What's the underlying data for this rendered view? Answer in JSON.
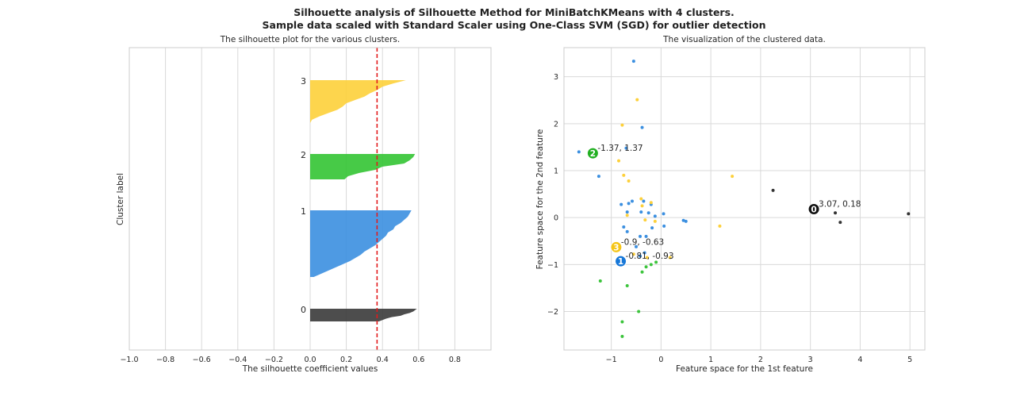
{
  "suptitle": {
    "line1": "Silhouette analysis of Silhouette Method for MiniBatchKMeans with 4 clusters.",
    "line2": "Sample data scaled with Standard Scaler using One-Class SVM (SGD) for outlier detection"
  },
  "chart_data": [
    {
      "type": "area",
      "title": "The silhouette plot for the various clusters.",
      "xlabel": "The silhouette coefficient values",
      "ylabel": "Cluster label",
      "xlim": [
        -1.0,
        1.0
      ],
      "xticks": [
        "−1.0",
        "−0.8",
        "−0.6",
        "−0.4",
        "−0.2",
        "0.0",
        "0.2",
        "0.4",
        "0.6",
        "0.8"
      ],
      "xtick_values": [
        -1.0,
        -0.8,
        -0.6,
        -0.4,
        -0.2,
        0.0,
        0.2,
        0.4,
        0.6,
        0.8
      ],
      "average_silhouette": 0.37,
      "average_line_color": "#e31a1c",
      "grid": true,
      "clusters": [
        {
          "label": "0",
          "color": "#3a3a3a",
          "values": [
            0.59,
            0.58,
            0.57,
            0.55,
            0.52,
            0.5,
            0.45,
            0.42,
            0.4,
            0.38
          ]
        },
        {
          "label": "1",
          "color": "#3b8fe0",
          "values": [
            0.56,
            0.55,
            0.54,
            0.52,
            0.5,
            0.47,
            0.46,
            0.43,
            0.42,
            0.4,
            0.38,
            0.36,
            0.33,
            0.3,
            0.28,
            0.25,
            0.22,
            0.18,
            0.14,
            0.1,
            0.06,
            0.02
          ]
        },
        {
          "label": "2",
          "color": "#33c433",
          "values": [
            0.58,
            0.57,
            0.55,
            0.52,
            0.4,
            0.36,
            0.27,
            0.21,
            0.19
          ]
        },
        {
          "label": "3",
          "color": "#fdd03a",
          "values": [
            0.53,
            0.46,
            0.4,
            0.37,
            0.33,
            0.3,
            0.25,
            0.2,
            0.18,
            0.15,
            0.1,
            0.05,
            0.01,
            0.0
          ]
        }
      ]
    },
    {
      "type": "scatter",
      "title": "The visualization of the clustered data.",
      "xlabel": "Feature space for the 1st feature",
      "ylabel": "Feature space for the 2nd feature",
      "xlim": [
        -1.95,
        5.3
      ],
      "ylim": [
        -2.82,
        3.62
      ],
      "xticks": [
        -1,
        0,
        1,
        2,
        3,
        4,
        5
      ],
      "xtick_labels": [
        "−1",
        "0",
        "1",
        "2",
        "3",
        "4",
        "5"
      ],
      "yticks": [
        -2,
        -1,
        0,
        1,
        2,
        3
      ],
      "ytick_labels": [
        "−2",
        "−1",
        "0",
        "1",
        "2",
        "3"
      ],
      "grid": true,
      "centers": [
        {
          "id": "0",
          "x": 3.07,
          "y": 0.18,
          "label": "3.07, 0.18",
          "color": "#111111"
        },
        {
          "id": "1",
          "x": -0.81,
          "y": -0.93,
          "label": "-0.81, -0.93",
          "color": "#1677d8"
        },
        {
          "id": "2",
          "x": -1.37,
          "y": 1.37,
          "label": "-1.37, 1.37",
          "color": "#22b022"
        },
        {
          "id": "3",
          "x": -0.9,
          "y": -0.63,
          "label": "-0.9, -0.63",
          "color": "#f5c518"
        }
      ],
      "series": [
        {
          "name": "0",
          "color": "#333333",
          "points": [
            [
              2.25,
              0.58
            ],
            [
              3.5,
              0.1
            ],
            [
              3.6,
              -0.1
            ],
            [
              4.97,
              0.08
            ]
          ]
        },
        {
          "name": "1",
          "color": "#3b8fe0",
          "points": [
            [
              -0.55,
              3.33
            ],
            [
              -0.38,
              1.92
            ],
            [
              -1.65,
              1.4
            ],
            [
              -0.7,
              1.48
            ],
            [
              -1.25,
              0.88
            ],
            [
              -0.65,
              0.3
            ],
            [
              -0.58,
              0.35
            ],
            [
              -0.8,
              0.28
            ],
            [
              -0.35,
              0.35
            ],
            [
              -0.2,
              0.28
            ],
            [
              -0.4,
              0.12
            ],
            [
              -0.68,
              0.12
            ],
            [
              -0.25,
              0.1
            ],
            [
              0.05,
              0.08
            ],
            [
              0.45,
              -0.06
            ],
            [
              0.5,
              -0.08
            ],
            [
              -0.12,
              0.03
            ],
            [
              -0.75,
              -0.2
            ],
            [
              -0.68,
              -0.3
            ],
            [
              -0.42,
              -0.4
            ],
            [
              -0.3,
              -0.4
            ],
            [
              -0.18,
              -0.22
            ],
            [
              0.06,
              -0.18
            ],
            [
              -0.5,
              -0.62
            ],
            [
              -0.33,
              -0.75
            ],
            [
              -0.42,
              -0.82
            ]
          ]
        },
        {
          "name": "2",
          "color": "#3cc43c",
          "points": [
            [
              -1.22,
              -1.35
            ],
            [
              -0.68,
              -1.45
            ],
            [
              -0.38,
              -1.16
            ],
            [
              -0.3,
              -1.05
            ],
            [
              -0.2,
              -1.0
            ],
            [
              -0.1,
              -0.95
            ],
            [
              -0.45,
              -2.0
            ],
            [
              -0.78,
              -2.22
            ],
            [
              -0.78,
              -2.53
            ]
          ]
        },
        {
          "name": "3",
          "color": "#fdd03a",
          "points": [
            [
              -0.48,
              2.51
            ],
            [
              -0.78,
              1.97
            ],
            [
              -0.85,
              1.21
            ],
            [
              -0.75,
              0.9
            ],
            [
              -0.65,
              0.78
            ],
            [
              1.43,
              0.88
            ],
            [
              -0.4,
              0.4
            ],
            [
              -0.2,
              0.32
            ],
            [
              -0.38,
              0.25
            ],
            [
              -0.68,
              0.05
            ],
            [
              -0.12,
              -0.08
            ],
            [
              -0.32,
              -0.05
            ],
            [
              1.18,
              -0.18
            ],
            [
              -0.55,
              -0.78
            ],
            [
              -0.28,
              -0.85
            ],
            [
              0.18,
              -0.85
            ]
          ]
        }
      ]
    }
  ]
}
